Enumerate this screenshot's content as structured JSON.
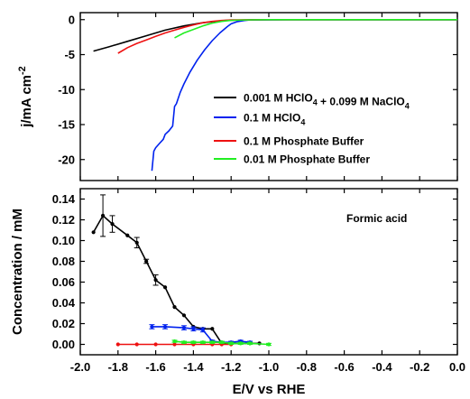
{
  "chart_data": [
    {
      "type": "line",
      "ylabel": "j/mA cm-2",
      "ylabel_parts": {
        "base": "j/mA cm",
        "sup": "-2"
      },
      "xlim": [
        -2.0,
        0.0
      ],
      "ylim": [
        -23,
        1
      ],
      "yticks": [
        {
          "value": 0,
          "label": "0"
        },
        {
          "value": -5,
          "label": "-5"
        },
        {
          "value": -10,
          "label": "-10"
        },
        {
          "value": -15,
          "label": "-15"
        },
        {
          "value": -20,
          "label": "-20"
        }
      ],
      "legend": "right",
      "series": [
        {
          "name": "0.001 M HClO4 + 0.099 M NaClO4",
          "name_parts": [
            {
              "t": "0.001 M HClO"
            },
            {
              "t": "4",
              "sub": true
            },
            {
              "t": " + 0.099 M NaClO"
            },
            {
              "t": "4",
              "sub": true
            }
          ],
          "color": "#000000",
          "x": [
            -1.93,
            -1.85,
            -1.75,
            -1.65,
            -1.55,
            -1.45,
            -1.35,
            -1.3,
            -1.25,
            -1.2,
            -1.1,
            -1.0,
            -0.8,
            -0.5,
            -0.2,
            0.0
          ],
          "y": [
            -4.5,
            -3.9,
            -3.1,
            -2.3,
            -1.5,
            -0.9,
            -0.45,
            -0.3,
            -0.15,
            -0.08,
            -0.03,
            -0.01,
            0,
            0,
            0,
            0
          ]
        },
        {
          "name": "0.1 M HClO4",
          "name_parts": [
            {
              "t": "0.1 M HClO"
            },
            {
              "t": "4",
              "sub": true
            }
          ],
          "color": "#0022ee",
          "x": [
            -1.62,
            -1.61,
            -1.6,
            -1.58,
            -1.56,
            -1.55,
            -1.53,
            -1.51,
            -1.5,
            -1.49,
            -1.48,
            -1.47,
            -1.45,
            -1.42,
            -1.38,
            -1.34,
            -1.3,
            -1.26,
            -1.22,
            -1.2,
            -1.17,
            -1.13,
            -1.1,
            -1.0,
            -0.9,
            -0.7,
            -0.5,
            -0.3,
            0.0
          ],
          "y": [
            -21.6,
            -18.8,
            -18.3,
            -17.7,
            -17.1,
            -16.4,
            -15.9,
            -15.2,
            -12.4,
            -12.0,
            -11.2,
            -10.4,
            -9.2,
            -7.6,
            -5.8,
            -4.3,
            -3.0,
            -1.9,
            -1.0,
            -0.6,
            -0.3,
            -0.12,
            -0.05,
            -0.02,
            -0.01,
            0,
            0,
            0,
            0
          ]
        },
        {
          "name": "0.1 M Phosphate Buffer",
          "color": "#ee1111",
          "x": [
            -1.8,
            -1.75,
            -1.7,
            -1.65,
            -1.6,
            -1.55,
            -1.5,
            -1.45,
            -1.4,
            -1.35,
            -1.3,
            -1.25,
            -1.2,
            -1.1,
            -1.0,
            -0.8,
            -0.5,
            -0.2,
            0.0
          ],
          "y": [
            -4.8,
            -4.0,
            -3.4,
            -2.9,
            -2.4,
            -1.9,
            -1.5,
            -1.1,
            -0.75,
            -0.45,
            -0.25,
            -0.12,
            -0.05,
            -0.02,
            -0.01,
            0,
            0,
            0,
            0
          ]
        },
        {
          "name": "0.01 M Phosphate Buffer",
          "color": "#22ee22",
          "x": [
            -1.5,
            -1.45,
            -1.4,
            -1.35,
            -1.3,
            -1.25,
            -1.2,
            -1.1,
            -1.0,
            -0.8,
            -0.5,
            -0.2,
            0.0
          ],
          "y": [
            -2.6,
            -1.9,
            -1.4,
            -0.9,
            -0.5,
            -0.25,
            -0.1,
            -0.03,
            -0.01,
            0,
            0,
            0,
            0
          ]
        }
      ]
    },
    {
      "type": "line",
      "xlabel": "E/V vs RHE",
      "ylabel": "Concentration / mM",
      "annotation": "Formic acid",
      "xlim": [
        -2.0,
        0.0
      ],
      "ylim": [
        -0.01,
        0.15
      ],
      "xticks": [
        {
          "value": -2.0,
          "label": "-2.0"
        },
        {
          "value": -1.8,
          "label": "-1.8"
        },
        {
          "value": -1.6,
          "label": "-1.6"
        },
        {
          "value": -1.4,
          "label": "-1.4"
        },
        {
          "value": -1.2,
          "label": "-1.2"
        },
        {
          "value": -1.0,
          "label": "-1.0"
        },
        {
          "value": -0.8,
          "label": "-0.8"
        },
        {
          "value": -0.6,
          "label": "-0.6"
        },
        {
          "value": -0.4,
          "label": "-0.4"
        },
        {
          "value": -0.2,
          "label": "-0.2"
        },
        {
          "value": 0.0,
          "label": "0.0"
        }
      ],
      "yticks": [
        {
          "value": 0.0,
          "label": "0.00"
        },
        {
          "value": 0.02,
          "label": "0.02"
        },
        {
          "value": 0.04,
          "label": "0.04"
        },
        {
          "value": 0.06,
          "label": "0.06"
        },
        {
          "value": 0.08,
          "label": "0.08"
        },
        {
          "value": 0.1,
          "label": "0.10"
        },
        {
          "value": 0.12,
          "label": "0.12"
        },
        {
          "value": 0.14,
          "label": "0.14"
        }
      ],
      "series": [
        {
          "name": "0.001 M HClO4 + 0.099 M NaClO4",
          "color": "#000000",
          "x": [
            -1.93,
            -1.88,
            -1.83,
            -1.75,
            -1.7,
            -1.65,
            -1.6,
            -1.55,
            -1.5,
            -1.45,
            -1.4,
            -1.35,
            -1.3,
            -1.25,
            -1.2,
            -1.1,
            -1.05
          ],
          "y": [
            0.108,
            0.124,
            0.116,
            0.105,
            0.098,
            0.08,
            0.062,
            0.055,
            0.036,
            0.028,
            0.017,
            0.015,
            0.015,
            0.001,
            0.001,
            0.001,
            0.001
          ],
          "err": [
            0,
            0.02,
            0.008,
            0,
            0.005,
            0.002,
            0.005,
            0,
            0,
            0,
            0,
            0,
            0,
            0,
            0,
            0,
            0
          ]
        },
        {
          "name": "0.1 M HClO4",
          "color": "#0022ee",
          "x": [
            -1.62,
            -1.55,
            -1.45,
            -1.4,
            -1.35,
            -1.3,
            -1.25,
            -1.2,
            -1.15,
            -1.1
          ],
          "y": [
            0.017,
            0.017,
            0.016,
            0.015,
            0.014,
            0.003,
            0.002,
            0.002,
            0.003,
            0.002
          ],
          "err": [
            0.002,
            0.002,
            0.002,
            0.002,
            0.002,
            0.001,
            0.001,
            0.001,
            0.001,
            0.001
          ]
        },
        {
          "name": "0.1 M Phosphate Buffer",
          "color": "#ee1111",
          "x": [
            -1.8,
            -1.7,
            -1.6,
            -1.5,
            -1.4,
            -1.3,
            -1.25,
            -1.2
          ],
          "y": [
            0,
            0,
            0,
            0,
            0,
            0,
            0,
            0
          ],
          "err": [
            0,
            0,
            0,
            0,
            0,
            0,
            0,
            0
          ]
        },
        {
          "name": "0.01 M Phosphate Buffer",
          "color": "#22ee22",
          "x": [
            -1.5,
            -1.45,
            -1.4,
            -1.35,
            -1.3,
            -1.25,
            -1.2,
            -1.15,
            -1.1,
            -1.0
          ],
          "y": [
            0.003,
            0.002,
            0.002,
            0.002,
            0.002,
            0.002,
            0.001,
            0.001,
            0.001,
            0.0
          ],
          "err": [
            0.001,
            0.001,
            0.001,
            0.001,
            0.001,
            0.001,
            0.001,
            0.001,
            0.001,
            0.001
          ]
        }
      ]
    }
  ]
}
